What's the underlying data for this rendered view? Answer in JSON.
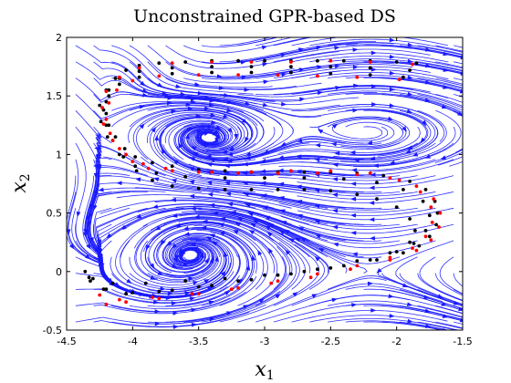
{
  "chart_data": {
    "type": "scatter",
    "title": "Unconstrained GPR-based DS",
    "xlabel": "x",
    "xlabel_sub": "1",
    "ylabel": "x",
    "ylabel_sub": "2",
    "xlim": [
      -4.5,
      -1.5
    ],
    "ylim": [
      -0.5,
      2
    ],
    "xticks": [
      -4.5,
      -4,
      -3.5,
      -3,
      -2.5,
      -2,
      -1.5
    ],
    "xtick_labels": [
      "-4.5",
      "-4",
      "-3.5",
      "-3",
      "-2.5",
      "-2",
      "-1.5"
    ],
    "yticks": [
      -0.5,
      0,
      0.5,
      1,
      1.5,
      2
    ],
    "ytick_labels": [
      "-0.5",
      "0",
      "0.5",
      "1",
      "1.5",
      "2"
    ],
    "grid": false,
    "background_field": {
      "description": "streamlines",
      "color": "#1a1aff",
      "attractors": [
        {
          "x": -3.45,
          "y": 1.1
        },
        {
          "x": -3.5,
          "y": 0.2
        },
        {
          "x": -4.2,
          "y": 1.85
        }
      ]
    },
    "series": [
      {
        "color": "#000000",
        "marker": "dot",
        "points": [
          [
            -1.85,
            1.78
          ],
          [
            -2.0,
            1.79
          ],
          [
            -2.2,
            1.8
          ],
          [
            -2.4,
            1.8
          ],
          [
            -2.6,
            1.8
          ],
          [
            -2.8,
            1.8
          ],
          [
            -3.0,
            1.8
          ],
          [
            -3.2,
            1.8
          ],
          [
            -3.4,
            1.8
          ],
          [
            -3.6,
            1.79
          ],
          [
            -3.8,
            1.78
          ],
          [
            -3.95,
            1.76
          ],
          [
            -4.05,
            1.72
          ],
          [
            -4.13,
            1.65
          ],
          [
            -4.18,
            1.55
          ],
          [
            -4.2,
            1.45
          ],
          [
            -4.2,
            1.35
          ],
          [
            -4.18,
            1.25
          ],
          [
            -4.13,
            1.15
          ],
          [
            -4.06,
            1.05
          ],
          [
            -3.98,
            0.98
          ],
          [
            -3.85,
            0.93
          ],
          [
            -3.7,
            0.9
          ],
          [
            -3.5,
            0.87
          ],
          [
            -3.3,
            0.86
          ],
          [
            -3.1,
            0.85
          ],
          [
            -2.9,
            0.85
          ],
          [
            -2.7,
            0.85
          ],
          [
            -2.5,
            0.85
          ],
          [
            -2.3,
            0.84
          ],
          [
            -2.1,
            0.82
          ],
          [
            -1.9,
            0.77
          ],
          [
            -1.78,
            0.7
          ],
          [
            -1.71,
            0.6
          ],
          [
            -1.69,
            0.5
          ],
          [
            -1.7,
            0.4
          ],
          [
            -1.75,
            0.3
          ],
          [
            -1.83,
            0.22
          ],
          [
            -1.95,
            0.16
          ],
          [
            -2.15,
            0.1
          ],
          [
            -2.4,
            0.05
          ],
          [
            -2.7,
            0.0
          ],
          [
            -3.0,
            -0.03
          ],
          [
            -3.3,
            -0.06
          ],
          [
            -3.6,
            -0.08
          ],
          [
            -3.9,
            -0.1
          ],
          [
            -4.15,
            -0.1
          ],
          [
            -4.3,
            -0.06
          ],
          [
            -4.36,
            0.0
          ]
        ]
      },
      {
        "color": "#000000",
        "marker": "dot",
        "points": [
          [
            -1.95,
            1.66
          ],
          [
            -2.2,
            1.68
          ],
          [
            -2.5,
            1.69
          ],
          [
            -2.8,
            1.7
          ],
          [
            -3.1,
            1.7
          ],
          [
            -3.4,
            1.7
          ],
          [
            -3.7,
            1.69
          ],
          [
            -3.95,
            1.66
          ],
          [
            -4.1,
            1.6
          ],
          [
            -4.18,
            1.5
          ],
          [
            -4.22,
            1.38
          ],
          [
            -4.2,
            1.25
          ],
          [
            -4.15,
            1.12
          ],
          [
            -4.07,
            0.98
          ],
          [
            -3.97,
            0.86
          ],
          [
            -3.85,
            0.78
          ],
          [
            -3.7,
            0.73
          ],
          [
            -3.5,
            0.71
          ],
          [
            -3.3,
            0.7
          ],
          [
            -3.1,
            0.7
          ],
          [
            -2.9,
            0.7
          ],
          [
            -2.7,
            0.7
          ],
          [
            -2.5,
            0.69
          ],
          [
            -2.3,
            0.66
          ],
          [
            -2.15,
            0.62
          ],
          [
            -2.0,
            0.55
          ],
          [
            -1.9,
            0.45
          ],
          [
            -1.86,
            0.35
          ],
          [
            -1.9,
            0.25
          ],
          [
            -2.0,
            0.17
          ],
          [
            -2.2,
            0.1
          ],
          [
            -2.5,
            0.03
          ],
          [
            -2.8,
            -0.02
          ],
          [
            -3.1,
            -0.07
          ],
          [
            -3.4,
            -0.12
          ],
          [
            -3.7,
            -0.16
          ],
          [
            -4.0,
            -0.18
          ],
          [
            -4.2,
            -0.15
          ],
          [
            -4.33,
            -0.05
          ]
        ]
      },
      {
        "color": "#000000",
        "marker": "dot",
        "points": [
          [
            -1.9,
            1.72
          ],
          [
            -2.2,
            1.74
          ],
          [
            -2.5,
            1.75
          ],
          [
            -2.8,
            1.75
          ],
          [
            -3.1,
            1.75
          ],
          [
            -3.4,
            1.75
          ],
          [
            -3.7,
            1.74
          ],
          [
            -3.95,
            1.71
          ],
          [
            -4.1,
            1.65
          ],
          [
            -4.2,
            1.55
          ],
          [
            -4.25,
            1.42
          ],
          [
            -4.24,
            1.28
          ],
          [
            -4.19,
            1.15
          ],
          [
            -4.1,
            1.0
          ],
          [
            -3.98,
            0.9
          ],
          [
            -3.82,
            0.84
          ],
          [
            -3.6,
            0.81
          ],
          [
            -3.3,
            0.8
          ],
          [
            -3.0,
            0.8
          ],
          [
            -2.7,
            0.8
          ],
          [
            -2.4,
            0.79
          ],
          [
            -2.15,
            0.76
          ],
          [
            -1.95,
            0.7
          ],
          [
            -1.8,
            0.6
          ],
          [
            -1.75,
            0.48
          ],
          [
            -1.78,
            0.35
          ],
          [
            -1.87,
            0.24
          ],
          [
            -2.05,
            0.16
          ],
          [
            -2.3,
            0.09
          ],
          [
            -2.6,
            0.02
          ],
          [
            -2.9,
            -0.03
          ],
          [
            -3.2,
            -0.08
          ],
          [
            -3.5,
            -0.13
          ],
          [
            -3.8,
            -0.17
          ],
          [
            -4.05,
            -0.19
          ],
          [
            -4.22,
            -0.15
          ],
          [
            -4.32,
            -0.08
          ]
        ]
      },
      {
        "color": "#ff0000",
        "marker": "dot",
        "points": [
          [
            -1.88,
            1.77
          ],
          [
            -2.2,
            1.79
          ],
          [
            -2.5,
            1.8
          ],
          [
            -2.8,
            1.79
          ],
          [
            -3.1,
            1.79
          ],
          [
            -3.4,
            1.79
          ],
          [
            -3.7,
            1.78
          ],
          [
            -3.95,
            1.74
          ],
          [
            -4.1,
            1.66
          ],
          [
            -4.2,
            1.54
          ],
          [
            -4.23,
            1.4
          ],
          [
            -4.22,
            1.26
          ],
          [
            -4.15,
            1.12
          ],
          [
            -4.05,
            1.0
          ],
          [
            -3.92,
            0.92
          ],
          [
            -3.75,
            0.88
          ],
          [
            -3.5,
            0.85
          ],
          [
            -3.2,
            0.84
          ],
          [
            -2.9,
            0.84
          ],
          [
            -2.6,
            0.84
          ],
          [
            -2.3,
            0.83
          ],
          [
            -2.05,
            0.8
          ],
          [
            -1.85,
            0.73
          ],
          [
            -1.72,
            0.62
          ],
          [
            -1.67,
            0.5
          ],
          [
            -1.68,
            0.38
          ],
          [
            -1.74,
            0.27
          ],
          [
            -1.85,
            0.18
          ],
          [
            -2.05,
            0.1
          ],
          [
            -2.35,
            0.02
          ],
          [
            -2.65,
            -0.05
          ],
          [
            -2.95,
            -0.1
          ],
          [
            -3.25,
            -0.15
          ],
          [
            -3.55,
            -0.19
          ],
          [
            -3.85,
            -0.22
          ],
          [
            -4.1,
            -0.24
          ],
          [
            -4.25,
            -0.2
          ]
        ]
      },
      {
        "color": "#ff0000",
        "marker": "dot",
        "points": [
          [
            -1.98,
            1.64
          ],
          [
            -2.3,
            1.66
          ],
          [
            -2.6,
            1.67
          ],
          [
            -2.9,
            1.68
          ],
          [
            -3.2,
            1.68
          ],
          [
            -3.5,
            1.68
          ],
          [
            -3.8,
            1.67
          ],
          [
            -4.0,
            1.63
          ],
          [
            -4.12,
            1.55
          ],
          [
            -4.18,
            1.44
          ],
          [
            -4.2,
            1.3
          ],
          [
            -4.17,
            1.18
          ],
          [
            -4.1,
            1.05
          ],
          [
            -4.0,
            0.94
          ],
          [
            -3.88,
            0.88
          ],
          [
            -3.7,
            0.86
          ],
          [
            -3.4,
            0.85
          ],
          [
            -3.1,
            0.85
          ],
          [
            -2.8,
            0.86
          ],
          [
            -2.5,
            0.86
          ],
          [
            -2.2,
            0.84
          ],
          [
            -1.98,
            0.78
          ],
          [
            -1.82,
            0.68
          ],
          [
            -1.74,
            0.55
          ],
          [
            -1.73,
            0.42
          ],
          [
            -1.78,
            0.3
          ],
          [
            -1.88,
            0.2
          ],
          [
            -2.05,
            0.12
          ],
          [
            -2.3,
            0.05
          ],
          [
            -2.6,
            -0.02
          ],
          [
            -2.9,
            -0.08
          ],
          [
            -3.2,
            -0.14
          ],
          [
            -3.5,
            -0.19
          ],
          [
            -3.8,
            -0.23
          ],
          [
            -4.05,
            -0.26
          ],
          [
            -4.2,
            -0.28
          ]
        ]
      }
    ]
  }
}
